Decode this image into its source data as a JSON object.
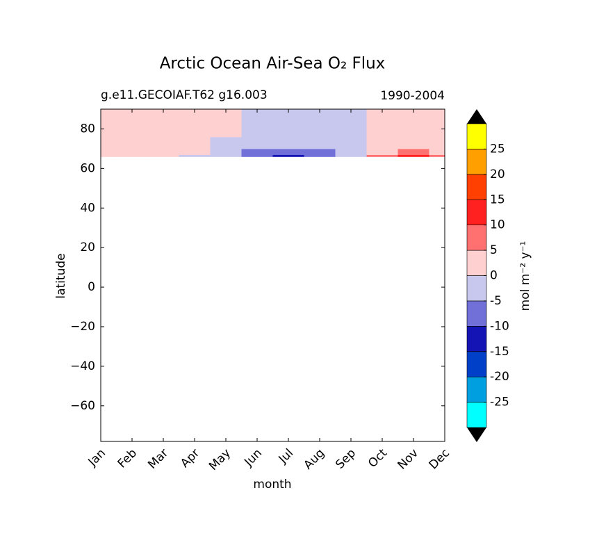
{
  "chart_data": {
    "type": "contour",
    "title": "Arctic Ocean Air-Sea O₂ Flux",
    "subtitle_left": "g.e11.GECOIAF.T62 g16.003",
    "subtitle_right": "1990-2004",
    "xlabel": "month",
    "ylabel": "latitude",
    "colorbar_label": "mol m⁻² y⁻¹",
    "categories": [
      "Jan",
      "Feb",
      "Mar",
      "Apr",
      "May",
      "Jun",
      "Jul",
      "Aug",
      "Sep",
      "Oct",
      "Nov",
      "Dec"
    ],
    "y": [
      66,
      68,
      72,
      80,
      90
    ],
    "z": [
      [
        2,
        2,
        2,
        2,
        2
      ],
      [
        1.5,
        1.5,
        1.5,
        1.5,
        1.5
      ],
      [
        1,
        1,
        1,
        1,
        1
      ],
      [
        -1,
        0.5,
        0.5,
        0.5,
        0.5
      ],
      [
        -3,
        -2,
        -0.5,
        0.5,
        0.5
      ],
      [
        -8,
        -6,
        -3,
        -1,
        -1
      ],
      [
        -12,
        -8,
        -4,
        -2,
        -2
      ],
      [
        -9,
        -7,
        -3,
        -1.5,
        -1.5
      ],
      [
        -2,
        -1,
        -1,
        -0.5,
        -0.5
      ],
      [
        6,
        3,
        1,
        1,
        1
      ],
      [
        11,
        7,
        2,
        1,
        1
      ],
      [
        6,
        4,
        1.5,
        1,
        1
      ]
    ],
    "ylim": [
      -78,
      90
    ],
    "yticks": [
      80,
      60,
      40,
      20,
      0,
      {
        "value": -20,
        "label": "−20"
      },
      {
        "value": -40,
        "label": "−40"
      },
      {
        "value": -60,
        "label": "−60"
      }
    ],
    "levels": [
      -30,
      -25,
      -20,
      -15,
      -10,
      -5,
      0,
      5,
      10,
      15,
      20,
      25,
      30
    ],
    "colors": [
      "#00ffff",
      "#00a0e0",
      "#0040c8",
      "#1414b4",
      "#7070d8",
      "#c8c8ee",
      "#ffd0d0",
      "#ff7070",
      "#ff2020",
      "#ff4000",
      "#ffa000",
      "#ffff00"
    ],
    "extend_color": "#000000",
    "cbticks": [
      -25,
      -20,
      -15,
      -10,
      -5,
      0,
      5,
      10,
      15,
      20,
      25
    ]
  }
}
